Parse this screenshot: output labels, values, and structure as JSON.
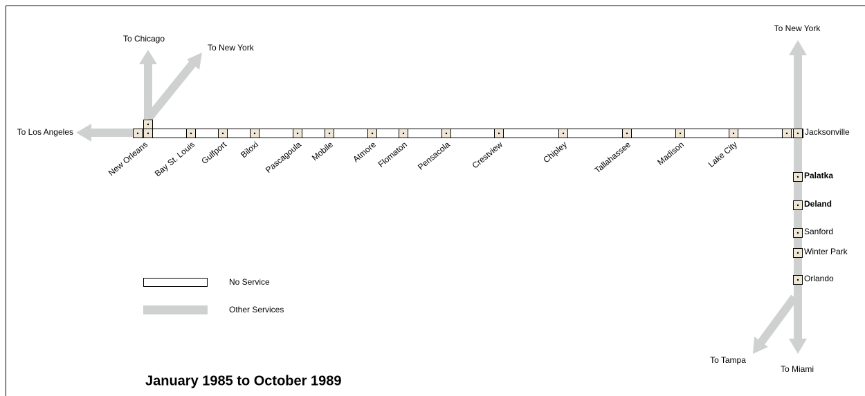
{
  "title": "January 1985 to October 1989",
  "legend": [
    {
      "label": "No Service"
    },
    {
      "label": "Other Services"
    }
  ],
  "stations": [
    {
      "label": "New Orleans"
    },
    {
      "label": "Bay St. Louis"
    },
    {
      "label": "Gulfport"
    },
    {
      "label": "Biloxi"
    },
    {
      "label": "Pascagoula"
    },
    {
      "label": "Mobile"
    },
    {
      "label": "Atmore"
    },
    {
      "label": "Flomaton"
    },
    {
      "label": "Pensacola"
    },
    {
      "label": "Crestview"
    },
    {
      "label": "Chipley"
    },
    {
      "label": "Tallahassee"
    },
    {
      "label": "Madison"
    },
    {
      "label": "Lake City"
    },
    {
      "label": "Jacksonville"
    }
  ],
  "branch_stations": [
    {
      "label": "Palatka"
    },
    {
      "label": "Deland"
    },
    {
      "label": "Sanford"
    },
    {
      "label": "Winter Park"
    },
    {
      "label": "Orlando"
    }
  ],
  "destinations": [
    {
      "label": "To Los Angeles"
    },
    {
      "label": "To Chicago"
    },
    {
      "label": "To New York"
    },
    {
      "label": "To New York"
    },
    {
      "label": "To Tampa"
    },
    {
      "label": "To Miami"
    }
  ]
}
